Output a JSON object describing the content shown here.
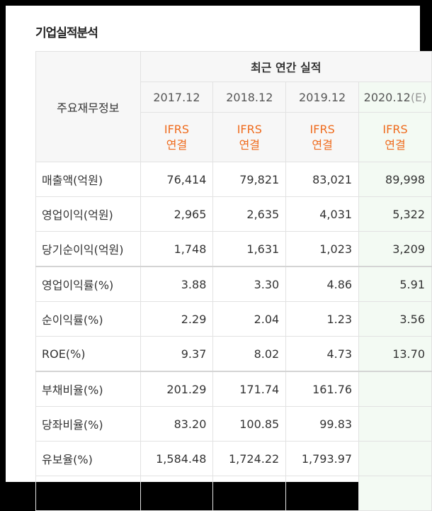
{
  "header": {
    "title": "기업실적분석"
  },
  "table": {
    "row_header": "주요재무정보",
    "group_header": "최근 연간 실적",
    "columns": [
      {
        "period": "2017.12",
        "suffix": null,
        "standard": "IFRS",
        "consolidation": "연결"
      },
      {
        "period": "2018.12",
        "suffix": null,
        "standard": "IFRS",
        "consolidation": "연결"
      },
      {
        "period": "2019.12",
        "suffix": null,
        "standard": "IFRS",
        "consolidation": "연결"
      },
      {
        "period": "2020.12",
        "suffix": "(E)",
        "standard": "IFRS",
        "consolidation": "연결"
      }
    ],
    "rows": [
      [
        "매출액(억원)",
        "76,414",
        "79,821",
        "83,021",
        "89,998"
      ],
      [
        "영업이익(억원)",
        "2,965",
        "2,635",
        "4,031",
        "5,322"
      ],
      [
        "당기순이익(억원)",
        "1,748",
        "1,631",
        "1,023",
        "3,209"
      ],
      [
        "영업이익률(%)",
        "3.88",
        "3.30",
        "4.86",
        "5.91"
      ],
      [
        "순이익률(%)",
        "2.29",
        "2.04",
        "1.23",
        "3.56"
      ],
      [
        "ROE(%)",
        "9.37",
        "8.02",
        "4.73",
        "13.70"
      ],
      [
        "부채비율(%)",
        "201.29",
        "171.74",
        "161.76",
        null
      ],
      [
        "당좌비율(%)",
        "83.20",
        "100.85",
        "99.83",
        null
      ],
      [
        "유보율(%)",
        "1,584.48",
        "1,724.22",
        "1,793.97",
        null
      ]
    ]
  }
}
